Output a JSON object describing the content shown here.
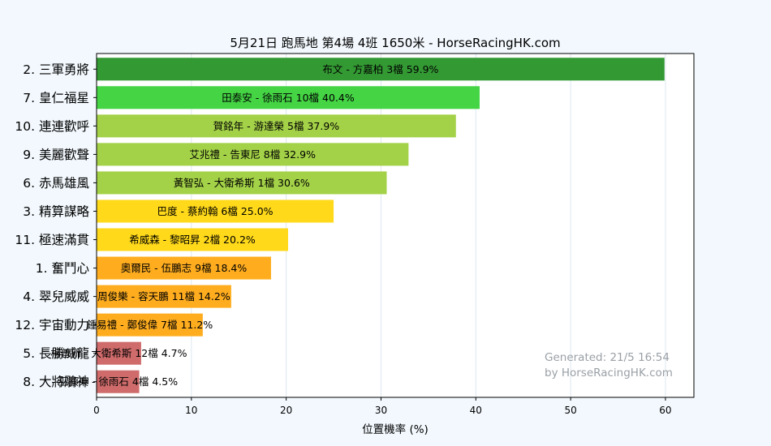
{
  "chart_data": {
    "type": "bar",
    "orientation": "horizontal",
    "title": "5月21日  跑馬地  第4場  4班  1650米 - HorseRacingHK.com",
    "xlabel": "位置機率 (%)",
    "ylabel": "",
    "xlim": [
      0,
      63
    ],
    "xticks": [
      0,
      10,
      20,
      30,
      40,
      50,
      60
    ],
    "grid": true,
    "categories": [
      "2. 三軍勇將",
      "7. 皇仁福星",
      "10. 連連歡呼",
      "9. 美麗歡聲",
      "6. 赤馬雄風",
      "3. 精算謀略",
      "11. 極速滿貫",
      "1. 奮鬥心",
      "4. 翠兒威威",
      "12. 宇宙動力",
      "5. 長勝威龍",
      "8. 大將鵰神"
    ],
    "values": [
      59.9,
      40.4,
      37.9,
      32.9,
      30.6,
      25.0,
      20.2,
      18.4,
      14.2,
      11.2,
      4.7,
      4.5
    ],
    "bar_labels": [
      "布文 - 方嘉柏 3檔  59.9%",
      "田泰安 - 徐雨石 10檔  40.4%",
      "賀銘年 - 游達榮 5檔  37.9%",
      "艾兆禮 - 告東尼 8檔  32.9%",
      "黃智弘 - 大衛希斯 1檔  30.6%",
      "巴度 - 蔡約翰 6檔  25.0%",
      "希威森 - 黎昭昇 2檔  20.2%",
      "奧爾民 - 伍鵬志 9檔 18.4%",
      "周俊樂 - 容天鵬 11檔  14.2%",
      "鍾易禮 - 鄭俊偉 7檔  11.2%",
      "楊普新 - 大衛希斯 12檔  4.7%",
      "巫顯東 - 徐雨石 4檔  4.5%"
    ],
    "colors": [
      "#339933",
      "#44d444",
      "#a3d147",
      "#a3d147",
      "#a3d147",
      "#ffd91a",
      "#ffd91a",
      "#ffad1f",
      "#ffad1f",
      "#ffad1f",
      "#cf6b6b",
      "#cf6b6b"
    ],
    "annotation": [
      "Generated: 21/5 16:54",
      "by HorseRacingHK.com"
    ]
  }
}
